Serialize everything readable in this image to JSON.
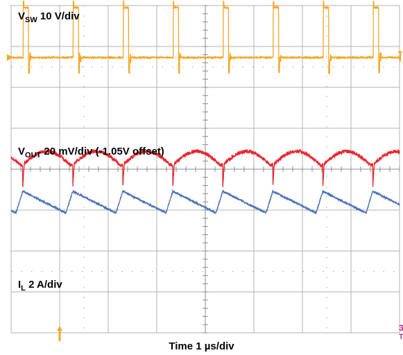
{
  "chart_data": {
    "type": "line",
    "title": "",
    "xlabel": "Time 1 µs/div",
    "ylabel": "",
    "x_divisions": 8,
    "y_divisions": 8,
    "x_unit": "µs",
    "x_per_div": 1,
    "x_range": [
      0,
      8
    ],
    "grid": true,
    "grid_color": "#b0b0b0",
    "trigger_x": 1,
    "series": [
      {
        "name": "VSW 10 V/div",
        "label_main": "V",
        "label_sub": "SW",
        "label_rest": " 10 V/div",
        "color": "#f5a623",
        "units_per_div": "10 V/div",
        "reference_level_div": 2.73,
        "high_level_div": 3.95,
        "period_us": 1.03,
        "first_edge_us": 0.25,
        "pulse_width_us": 0.11,
        "undershoot_div": -0.37
      },
      {
        "name": "VOUT 20 mV/div (-1.05V offset)",
        "label_main": "V",
        "label_sub": "OUT",
        "label_rest": " 20 mV/div (-1.05V offset)",
        "color": "#e8262f",
        "units_per_div": "20 mV/div",
        "offset": "-1.05V",
        "center_level_div": 0.27,
        "ripple_div": 0.33,
        "period_us": 1.03,
        "first_dip_us": 0.24,
        "spike_depth_div": 0.55
      },
      {
        "name": "IL 2 A/div",
        "label_main": "I",
        "label_sub": "L",
        "label_rest": " 2 A/div",
        "color": "#4a6fb5",
        "units_per_div": "2 A/div",
        "valley_div": -1.07,
        "peak_div": -0.54,
        "period_us": 1.03,
        "first_peak_us": 0.24,
        "rise_time_us": 0.14
      }
    ],
    "markers": {
      "ch1_level_marker": "1",
      "ch3_marker": "3",
      "trigger_marker": "T"
    }
  }
}
